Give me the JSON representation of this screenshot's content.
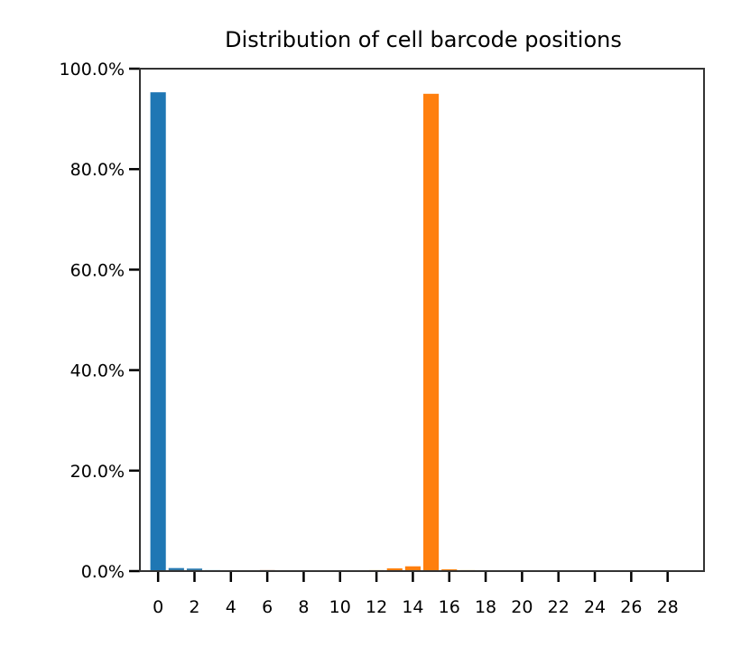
{
  "chart_data": {
    "type": "bar",
    "title": "Distribution of cell barcode positions",
    "xlabel": "",
    "ylabel": "",
    "ylim": [
      0,
      100
    ],
    "xlim": [
      -1,
      30
    ],
    "x_ticks": [
      "0",
      "2",
      "4",
      "6",
      "8",
      "10",
      "12",
      "14",
      "16",
      "18",
      "20",
      "22",
      "24",
      "26",
      "28"
    ],
    "y_ticks": [
      "0.0%",
      "20.0%",
      "40.0%",
      "60.0%",
      "80.0%",
      "100.0%"
    ],
    "colors": {
      "series_blue": "#1f77b4",
      "series_orange": "#ff7f0e",
      "axis": "#333333"
    },
    "x": [
      0,
      1,
      2,
      3,
      4,
      5,
      6,
      7,
      8,
      9,
      10,
      11,
      12,
      13,
      14,
      15,
      16,
      17,
      18,
      19,
      20,
      21,
      22,
      23,
      24,
      25,
      26,
      27,
      28,
      29
    ],
    "series": [
      {
        "values": [
          95.3,
          0.6,
          0.5,
          0.2,
          0.15,
          0,
          0.2,
          0.15,
          0,
          0,
          0,
          0,
          0,
          0,
          0,
          0,
          0,
          0,
          0,
          0,
          0,
          0,
          0,
          0,
          0,
          0,
          0,
          0,
          0,
          0
        ]
      },
      {
        "values": [
          0,
          0.2,
          0.2,
          0.15,
          0.15,
          0,
          0.2,
          0.15,
          0,
          0,
          0,
          0,
          0.2,
          0.55,
          0.95,
          95.0,
          0.35,
          0.2,
          0,
          0,
          0,
          0,
          0,
          0,
          0,
          0.15,
          0,
          0,
          0,
          0
        ]
      }
    ]
  }
}
